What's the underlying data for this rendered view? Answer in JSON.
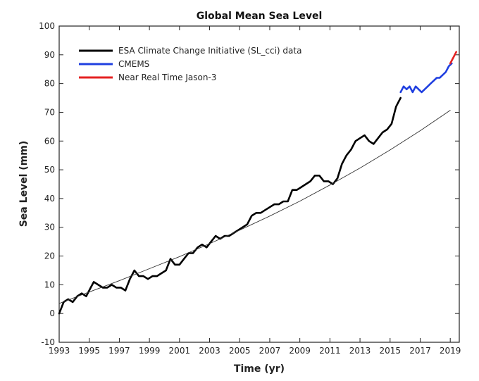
{
  "chart_data": {
    "type": "line",
    "title": "Global Mean Sea Level",
    "xlabel": "Time (yr)",
    "ylabel": "Sea Level (mm)",
    "xlim": [
      1993,
      2019.6
    ],
    "ylim": [
      -10,
      100
    ],
    "xticks": [
      1993,
      1995,
      1997,
      1999,
      2001,
      2003,
      2005,
      2007,
      2009,
      2011,
      2013,
      2015,
      2017,
      2019
    ],
    "yticks": [
      -10,
      0,
      10,
      20,
      30,
      40,
      50,
      60,
      70,
      80,
      90,
      100
    ],
    "grid": false,
    "legend_position": "top-left",
    "series": [
      {
        "name": "ESA Climate Change Initiative (SL_cci) data",
        "color": "#000000",
        "x": [
          1993.0,
          1993.3,
          1993.6,
          1993.9,
          1994.2,
          1994.5,
          1994.8,
          1995.1,
          1995.3,
          1995.6,
          1995.9,
          1996.2,
          1996.5,
          1996.8,
          1997.1,
          1997.4,
          1997.7,
          1998.0,
          1998.3,
          1998.6,
          1998.9,
          1999.2,
          1999.5,
          1999.8,
          2000.1,
          2000.4,
          2000.7,
          2001.0,
          2001.3,
          2001.6,
          2001.9,
          2002.2,
          2002.5,
          2002.8,
          2003.1,
          2003.4,
          2003.7,
          2004.0,
          2004.3,
          2004.6,
          2004.9,
          2005.2,
          2005.5,
          2005.8,
          2006.1,
          2006.4,
          2006.7,
          2007.0,
          2007.3,
          2007.6,
          2007.9,
          2008.2,
          2008.5,
          2008.8,
          2009.1,
          2009.4,
          2009.7,
          2010.0,
          2010.3,
          2010.6,
          2010.9,
          2011.2,
          2011.5,
          2011.8,
          2012.1,
          2012.4,
          2012.7,
          2013.0,
          2013.3,
          2013.6,
          2013.9,
          2014.2,
          2014.5,
          2014.8,
          2015.1,
          2015.4,
          2015.7
        ],
        "y": [
          0,
          4,
          5,
          4,
          6,
          7,
          6,
          9,
          11,
          10,
          9,
          9,
          10,
          9,
          9,
          8,
          12,
          15,
          13,
          13,
          12,
          13,
          13,
          14,
          15,
          19,
          17,
          17,
          19,
          21,
          21,
          23,
          24,
          23,
          25,
          27,
          26,
          27,
          27,
          28,
          29,
          30,
          31,
          34,
          35,
          35,
          36,
          37,
          38,
          38,
          39,
          39,
          43,
          43,
          44,
          45,
          46,
          48,
          48,
          46,
          46,
          45,
          47,
          52,
          55,
          57,
          60,
          61,
          62,
          60,
          59,
          61,
          63,
          64,
          66,
          72,
          75
        ]
      },
      {
        "name": "CMEMS",
        "color": "#1f3fe0",
        "x": [
          2015.7,
          2015.9,
          2016.1,
          2016.3,
          2016.5,
          2016.7,
          2016.9,
          2017.1,
          2017.3,
          2017.5,
          2017.7,
          2017.9,
          2018.1,
          2018.3,
          2018.5,
          2018.7,
          2018.9,
          2019.1
        ],
        "y": [
          77,
          79,
          78,
          79,
          77,
          79,
          78,
          77,
          78,
          79,
          80,
          81,
          82,
          82,
          83,
          84,
          86,
          87
        ]
      },
      {
        "name": "Near Real Time Jason-3",
        "color": "#e52222",
        "x": [
          2019.0,
          2019.1,
          2019.2,
          2019.3,
          2019.4
        ],
        "y": [
          87,
          88,
          89,
          90,
          91
        ]
      },
      {
        "name": "",
        "color": "#333333",
        "x": [
          1993,
          1995,
          1997,
          1999,
          2001,
          2003,
          2005,
          2007,
          2009,
          2011,
          2013,
          2015,
          2017,
          2019
        ],
        "y": [
          3.5,
          7.5,
          11.4,
          15.6,
          19.8,
          24.3,
          29.0,
          33.9,
          39.1,
          44.7,
          50.6,
          56.9,
          63.6,
          70.7
        ]
      }
    ]
  }
}
